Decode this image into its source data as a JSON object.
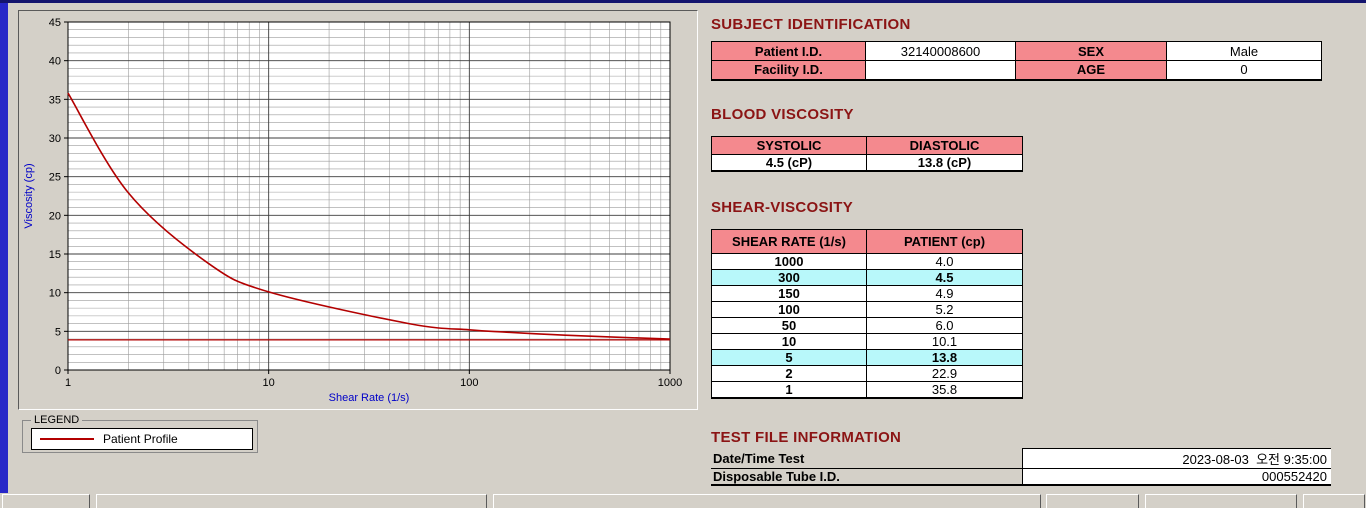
{
  "chart": {
    "legend": {
      "title": "LEGEND",
      "series_label": "Patient Profile"
    }
  },
  "chart_data": {
    "type": "line",
    "title": "",
    "xlabel": "Shear Rate (1/s)",
    "ylabel": "Viscosity (cp)",
    "x_scale": "log",
    "xlim": [
      1,
      1000
    ],
    "ylim": [
      0,
      45
    ],
    "x_ticks": [
      1,
      10,
      100,
      1000
    ],
    "y_ticks": [
      0,
      5,
      10,
      15,
      20,
      25,
      30,
      35,
      40,
      45
    ],
    "y_minor_step": 1,
    "grid": true,
    "legend_position": "below-left",
    "series": [
      {
        "name": "Patient Profile",
        "type": "line",
        "color": "#b30000",
        "x": [
          1,
          2,
          5,
          10,
          50,
          100,
          150,
          300,
          1000
        ],
        "y": [
          35.8,
          22.9,
          13.8,
          10.1,
          6.0,
          5.2,
          4.9,
          4.5,
          4.0
        ]
      },
      {
        "name": "baseline",
        "type": "hline",
        "color": "#b30000",
        "y": 3.9
      }
    ]
  },
  "sections": {
    "subject": {
      "title": "SUBJECT IDENTIFICATION",
      "rows": [
        {
          "label1": "Patient I.D.",
          "value1": "32140008600",
          "label2": "SEX",
          "value2": "Male"
        },
        {
          "label1": "Facility I.D.",
          "value1": "",
          "label2": "AGE",
          "value2": "0"
        }
      ]
    },
    "blood_viscosity": {
      "title": "BLOOD VISCOSITY",
      "headers": [
        "SYSTOLIC",
        "DIASTOLIC"
      ],
      "values": [
        "4.5 (cP)",
        "13.8 (cP)"
      ]
    },
    "shear_viscosity": {
      "title": "SHEAR-VISCOSITY",
      "headers": [
        "SHEAR RATE (1/s)",
        "PATIENT (cp)"
      ],
      "rows": [
        {
          "rate": "1000",
          "value": "4.0",
          "highlight": false
        },
        {
          "rate": "300",
          "value": "4.5",
          "highlight": true
        },
        {
          "rate": "150",
          "value": "4.9",
          "highlight": false
        },
        {
          "rate": "100",
          "value": "5.2",
          "highlight": false
        },
        {
          "rate": "50",
          "value": "6.0",
          "highlight": false
        },
        {
          "rate": "10",
          "value": "10.1",
          "highlight": false
        },
        {
          "rate": "5",
          "value": "13.8",
          "highlight": true
        },
        {
          "rate": "2",
          "value": "22.9",
          "highlight": false
        },
        {
          "rate": "1",
          "value": "35.8",
          "highlight": false
        }
      ]
    },
    "test_file": {
      "title": "TEST FILE INFORMATION",
      "rows": [
        {
          "label": "Date/Time Test",
          "value": "2023-08-03  오전 9:35:00"
        },
        {
          "label": "Disposable Tube I.D.",
          "value": "000552420"
        }
      ]
    }
  },
  "colors": {
    "title_maroon": "#8b1414",
    "header_pink": "#f4898e",
    "highlight_cyan": "#b8f8fa",
    "curve_red": "#b30000",
    "axis_label_blue": "#0000c8",
    "window_blue": "#2727c8",
    "background_gray": "#d4d0c8"
  }
}
